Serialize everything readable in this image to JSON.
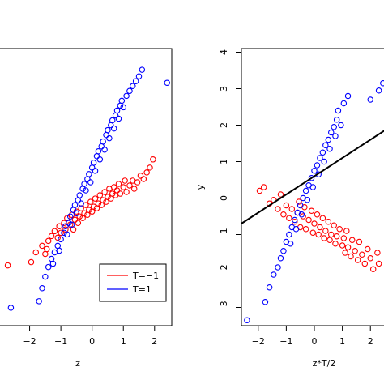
{
  "chart_data": [
    {
      "type": "scatter",
      "xlabel": "z",
      "ylabel": "",
      "xlim": [
        -3.0,
        2.55
      ],
      "ylim": [
        -3.9,
        4.6
      ],
      "xticks": [
        -2,
        -1,
        0,
        1,
        2
      ],
      "xtick_labels": [
        "−2",
        "−1",
        "0",
        "1",
        "2"
      ],
      "grid": false,
      "legend": {
        "placement": "bottom-right",
        "entries": [
          {
            "label": "T=−1",
            "color": "#ff0000"
          },
          {
            "label": "T=1",
            "color": "#0000ff"
          }
        ]
      },
      "series": [
        {
          "name": "T=−1",
          "color": "#ff0000",
          "points": [
            [
              -2.7,
              -2.05
            ],
            [
              -1.95,
              -1.95
            ],
            [
              -1.8,
              -1.65
            ],
            [
              -1.6,
              -1.45
            ],
            [
              -1.5,
              -1.7
            ],
            [
              -1.45,
              -1.55
            ],
            [
              -1.4,
              -1.3
            ],
            [
              -1.3,
              -1.15
            ],
            [
              -1.2,
              -1.0
            ],
            [
              -1.1,
              -1.2
            ],
            [
              -1.05,
              -0.85
            ],
            [
              -1.0,
              -1.05
            ],
            [
              -0.9,
              -0.75
            ],
            [
              -0.85,
              -0.95
            ],
            [
              -0.8,
              -0.6
            ],
            [
              -0.7,
              -0.8
            ],
            [
              -0.65,
              -0.5
            ],
            [
              -0.6,
              -0.95
            ],
            [
              -0.55,
              -0.65
            ],
            [
              -0.5,
              -0.4
            ],
            [
              -0.45,
              -0.75
            ],
            [
              -0.4,
              -0.55
            ],
            [
              -0.35,
              -0.3
            ],
            [
              -0.3,
              -0.6
            ],
            [
              -0.25,
              -0.45
            ],
            [
              -0.2,
              -0.2
            ],
            [
              -0.15,
              -0.5
            ],
            [
              -0.1,
              -0.35
            ],
            [
              -0.05,
              -0.1
            ],
            [
              0.0,
              -0.4
            ],
            [
              0.05,
              -0.25
            ],
            [
              0.1,
              0.0
            ],
            [
              0.15,
              -0.3
            ],
            [
              0.2,
              -0.15
            ],
            [
              0.25,
              0.1
            ],
            [
              0.3,
              -0.2
            ],
            [
              0.35,
              -0.05
            ],
            [
              0.4,
              0.2
            ],
            [
              0.45,
              -0.1
            ],
            [
              0.5,
              0.05
            ],
            [
              0.55,
              0.3
            ],
            [
              0.6,
              0.0
            ],
            [
              0.65,
              0.15
            ],
            [
              0.7,
              0.35
            ],
            [
              0.75,
              0.1
            ],
            [
              0.8,
              0.25
            ],
            [
              0.85,
              0.45
            ],
            [
              0.9,
              0.15
            ],
            [
              1.0,
              0.35
            ],
            [
              1.05,
              0.55
            ],
            [
              1.1,
              0.2
            ],
            [
              1.2,
              0.4
            ],
            [
              1.3,
              0.55
            ],
            [
              1.35,
              0.3
            ],
            [
              1.45,
              0.5
            ],
            [
              1.55,
              0.7
            ],
            [
              1.65,
              0.6
            ],
            [
              1.75,
              0.8
            ],
            [
              1.85,
              0.95
            ],
            [
              1.95,
              1.2
            ]
          ]
        },
        {
          "name": "T=1",
          "color": "#0000ff",
          "points": [
            [
              -2.6,
              -3.35
            ],
            [
              -1.7,
              -3.15
            ],
            [
              -1.6,
              -2.75
            ],
            [
              -1.5,
              -2.4
            ],
            [
              -1.4,
              -2.1
            ],
            [
              -1.3,
              -1.85
            ],
            [
              -1.25,
              -2.0
            ],
            [
              -1.2,
              -1.65
            ],
            [
              -1.1,
              -1.45
            ],
            [
              -1.05,
              -1.6
            ],
            [
              -1.0,
              -1.25
            ],
            [
              -0.9,
              -1.05
            ],
            [
              -0.85,
              -0.85
            ],
            [
              -0.8,
              -1.1
            ],
            [
              -0.75,
              -0.75
            ],
            [
              -0.7,
              -0.55
            ],
            [
              -0.65,
              -0.8
            ],
            [
              -0.6,
              -0.35
            ],
            [
              -0.55,
              -0.2
            ],
            [
              -0.5,
              -0.45
            ],
            [
              -0.45,
              -0.05
            ],
            [
              -0.4,
              0.1
            ],
            [
              -0.35,
              -0.15
            ],
            [
              -0.3,
              0.3
            ],
            [
              -0.25,
              0.45
            ],
            [
              -0.2,
              0.25
            ],
            [
              -0.15,
              0.6
            ],
            [
              -0.1,
              0.75
            ],
            [
              -0.05,
              0.5
            ],
            [
              0.0,
              0.95
            ],
            [
              0.05,
              1.1
            ],
            [
              0.1,
              0.85
            ],
            [
              0.15,
              1.3
            ],
            [
              0.2,
              1.45
            ],
            [
              0.25,
              1.2
            ],
            [
              0.3,
              1.6
            ],
            [
              0.35,
              1.75
            ],
            [
              0.4,
              1.5
            ],
            [
              0.45,
              1.95
            ],
            [
              0.5,
              2.1
            ],
            [
              0.55,
              1.85
            ],
            [
              0.6,
              2.25
            ],
            [
              0.65,
              2.4
            ],
            [
              0.7,
              2.15
            ],
            [
              0.75,
              2.55
            ],
            [
              0.8,
              2.7
            ],
            [
              0.85,
              2.45
            ],
            [
              0.9,
              2.85
            ],
            [
              0.95,
              3.0
            ],
            [
              1.0,
              2.8
            ],
            [
              1.1,
              3.15
            ],
            [
              1.2,
              3.3
            ],
            [
              1.3,
              3.45
            ],
            [
              1.4,
              3.6
            ],
            [
              1.5,
              3.75
            ],
            [
              1.6,
              3.95
            ],
            [
              2.4,
              3.55
            ]
          ]
        }
      ]
    },
    {
      "type": "scatter",
      "xlabel": "z*T/2",
      "ylabel": "y",
      "xlim": [
        -2.6,
        2.6
      ],
      "ylim": [
        -3.5,
        4.1
      ],
      "xticks": [
        -2,
        -1,
        0,
        1,
        2
      ],
      "xtick_labels": [
        "−2",
        "−1",
        "0",
        "1",
        "2"
      ],
      "yticks": [
        -3,
        -2,
        -1,
        0,
        1,
        2,
        3,
        4
      ],
      "ytick_labels": [
        "−3",
        "−2",
        "−1",
        "0",
        "1",
        "2",
        "3",
        "4"
      ],
      "grid": false,
      "fit_line": {
        "intercept": 0.6,
        "slope": 0.5,
        "color": "#000000"
      },
      "series": [
        {
          "name": "T=−1",
          "color": "#ff0000",
          "points": [
            [
              -1.95,
              0.2
            ],
            [
              -1.8,
              0.3
            ],
            [
              -1.6,
              -0.15
            ],
            [
              -1.45,
              -0.05
            ],
            [
              -1.3,
              -0.3
            ],
            [
              -1.2,
              0.1
            ],
            [
              -1.1,
              -0.45
            ],
            [
              -1.0,
              -0.2
            ],
            [
              -0.9,
              -0.55
            ],
            [
              -0.8,
              -0.3
            ],
            [
              -0.7,
              -0.65
            ],
            [
              -0.6,
              -0.4
            ],
            [
              -0.55,
              -0.1
            ],
            [
              -0.5,
              -0.8
            ],
            [
              -0.4,
              -0.5
            ],
            [
              -0.35,
              -0.25
            ],
            [
              -0.3,
              -0.85
            ],
            [
              -0.2,
              -0.6
            ],
            [
              -0.1,
              -0.35
            ],
            [
              -0.05,
              -0.95
            ],
            [
              0.0,
              -0.7
            ],
            [
              0.1,
              -0.45
            ],
            [
              0.15,
              -1.0
            ],
            [
              0.2,
              -0.8
            ],
            [
              0.3,
              -0.55
            ],
            [
              0.35,
              -1.1
            ],
            [
              0.4,
              -0.9
            ],
            [
              0.5,
              -0.65
            ],
            [
              0.55,
              -1.15
            ],
            [
              0.6,
              -1.0
            ],
            [
              0.7,
              -0.75
            ],
            [
              0.75,
              -1.25
            ],
            [
              0.8,
              -1.05
            ],
            [
              0.9,
              -0.85
            ],
            [
              1.0,
              -1.3
            ],
            [
              1.05,
              -1.1
            ],
            [
              1.1,
              -1.5
            ],
            [
              1.15,
              -0.9
            ],
            [
              1.2,
              -1.35
            ],
            [
              1.3,
              -1.6
            ],
            [
              1.35,
              -1.15
            ],
            [
              1.45,
              -1.45
            ],
            [
              1.55,
              -1.7
            ],
            [
              1.6,
              -1.2
            ],
            [
              1.7,
              -1.55
            ],
            [
              1.8,
              -1.8
            ],
            [
              1.9,
              -1.4
            ],
            [
              2.0,
              -1.65
            ],
            [
              2.1,
              -1.95
            ],
            [
              2.25,
              -1.5
            ],
            [
              2.3,
              -1.8
            ]
          ]
        },
        {
          "name": "T=1",
          "color": "#0000ff",
          "points": [
            [
              -2.4,
              -3.35
            ],
            [
              -1.75,
              -2.85
            ],
            [
              -1.6,
              -2.45
            ],
            [
              -1.45,
              -2.1
            ],
            [
              -1.3,
              -1.9
            ],
            [
              -1.2,
              -1.65
            ],
            [
              -1.1,
              -1.45
            ],
            [
              -1.0,
              -1.2
            ],
            [
              -0.9,
              -1.0
            ],
            [
              -0.85,
              -1.25
            ],
            [
              -0.8,
              -0.8
            ],
            [
              -0.7,
              -0.6
            ],
            [
              -0.65,
              -0.85
            ],
            [
              -0.6,
              -0.4
            ],
            [
              -0.5,
              -0.2
            ],
            [
              -0.45,
              -0.45
            ],
            [
              -0.4,
              0.0
            ],
            [
              -0.3,
              0.2
            ],
            [
              -0.25,
              -0.05
            ],
            [
              -0.2,
              0.35
            ],
            [
              -0.1,
              0.55
            ],
            [
              -0.05,
              0.3
            ],
            [
              0.0,
              0.75
            ],
            [
              0.1,
              0.9
            ],
            [
              0.15,
              0.65
            ],
            [
              0.2,
              1.1
            ],
            [
              0.3,
              1.25
            ],
            [
              0.35,
              1.0
            ],
            [
              0.4,
              1.45
            ],
            [
              0.5,
              1.6
            ],
            [
              0.55,
              1.35
            ],
            [
              0.6,
              1.8
            ],
            [
              0.7,
              1.95
            ],
            [
              0.75,
              1.7
            ],
            [
              0.8,
              2.15
            ],
            [
              0.85,
              2.4
            ],
            [
              0.95,
              2.0
            ],
            [
              1.05,
              2.6
            ],
            [
              1.2,
              2.8
            ],
            [
              2.0,
              2.7
            ],
            [
              2.3,
              2.95
            ],
            [
              2.45,
              3.15
            ]
          ]
        }
      ]
    }
  ]
}
